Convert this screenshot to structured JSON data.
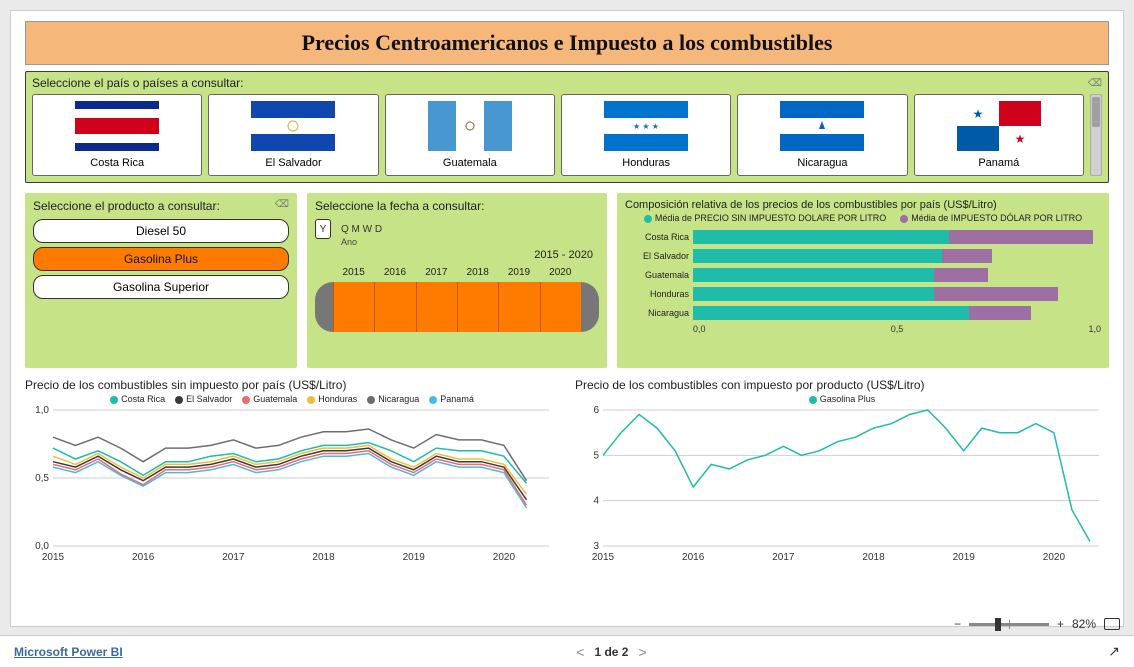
{
  "header": {
    "title": "Precios Centroamericanos e Impuesto a los combustibles"
  },
  "country_slicer": {
    "label": "Seleccione el país o países a consultar:",
    "items": [
      {
        "name": "Costa Rica",
        "flag": "cr"
      },
      {
        "name": "El Salvador",
        "flag": "sv"
      },
      {
        "name": "Guatemala",
        "flag": "gt"
      },
      {
        "name": "Honduras",
        "flag": "hn"
      },
      {
        "name": "Nicaragua",
        "flag": "ni"
      },
      {
        "name": "Panamá",
        "flag": "pa"
      }
    ]
  },
  "product_slicer": {
    "label": "Seleccione el producto a consultar:",
    "items": [
      "Diesel 50",
      "Gasolina Plus",
      "Gasolina Superior"
    ],
    "selected_index": 1,
    "selected_bg": "#ff7b00"
  },
  "date_slicer": {
    "label": "Seleccione la fecha a consultar:",
    "granularity": [
      "Y",
      "Q",
      "M",
      "W",
      "D"
    ],
    "granularity_sub": "Ano",
    "range_text": "2015 - 2020",
    "years": [
      "2015",
      "2016",
      "2017",
      "2018",
      "2019",
      "2020"
    ],
    "fill_color": "#ff7b00",
    "cap_color": "#777777"
  },
  "comp_chart": {
    "title": "Composición relativa de los precios de los combustibles por país (US$/Litro)",
    "legend": [
      {
        "label": "Média de PRECIO SIN IMPUESTO DOLARE POR LITRO",
        "color": "#1fbca9"
      },
      {
        "label": "Média de IMPUESTO DÓLAR POR LITRO",
        "color": "#9d6fa3"
      }
    ],
    "xmax": 1.05,
    "xticks": [
      "0,0",
      "0,5",
      "1,0"
    ],
    "bars": [
      {
        "label": "Costa Rica",
        "a": 0.66,
        "b": 0.37
      },
      {
        "label": "El Salvador",
        "a": 0.64,
        "b": 0.13
      },
      {
        "label": "Guatemala",
        "a": 0.62,
        "b": 0.14
      },
      {
        "label": "Honduras",
        "a": 0.62,
        "b": 0.32
      },
      {
        "label": "Nicaragua",
        "a": 0.71,
        "b": 0.16
      }
    ]
  },
  "left_chart": {
    "title": "Precio de los combustibles sin impuesto por país (US$/Litro)",
    "ylim": [
      0.0,
      1.0
    ],
    "yticks": [
      "0,0",
      "0,5",
      "1,0"
    ],
    "xlim": [
      2015,
      2020.5
    ],
    "xticks": [
      "2015",
      "2016",
      "2017",
      "2018",
      "2019",
      "2020"
    ],
    "background": "#ffffff",
    "series": [
      {
        "name": "Costa Rica",
        "color": "#1fbca9"
      },
      {
        "name": "El Salvador",
        "color": "#3a3a3a"
      },
      {
        "name": "Guatemala",
        "color": "#f06a6a"
      },
      {
        "name": "Honduras",
        "color": "#e8c13a"
      },
      {
        "name": "Nicaragua",
        "color": "#6e6e6e"
      },
      {
        "name": "Panamá",
        "color": "#4fb6e8"
      }
    ],
    "points_x": [
      2015,
      2015.25,
      2015.5,
      2015.75,
      2016,
      2016.25,
      2016.5,
      2016.75,
      2017,
      2017.25,
      2017.5,
      2017.75,
      2018,
      2018.25,
      2018.5,
      2018.75,
      2019,
      2019.25,
      2019.5,
      2019.75,
      2020,
      2020.25
    ],
    "values": {
      "Costa Rica": [
        0.72,
        0.64,
        0.7,
        0.62,
        0.52,
        0.62,
        0.62,
        0.66,
        0.68,
        0.62,
        0.64,
        0.7,
        0.74,
        0.74,
        0.76,
        0.7,
        0.62,
        0.72,
        0.7,
        0.7,
        0.66,
        0.46
      ],
      "El Salvador": [
        0.62,
        0.58,
        0.66,
        0.56,
        0.48,
        0.58,
        0.58,
        0.6,
        0.64,
        0.58,
        0.6,
        0.66,
        0.7,
        0.7,
        0.72,
        0.62,
        0.56,
        0.66,
        0.62,
        0.62,
        0.58,
        0.34
      ],
      "Guatemala": [
        0.6,
        0.56,
        0.64,
        0.53,
        0.45,
        0.56,
        0.56,
        0.58,
        0.62,
        0.56,
        0.58,
        0.64,
        0.68,
        0.68,
        0.7,
        0.6,
        0.54,
        0.64,
        0.6,
        0.6,
        0.56,
        0.3
      ],
      "Honduras": [
        0.66,
        0.6,
        0.68,
        0.58,
        0.5,
        0.6,
        0.6,
        0.62,
        0.66,
        0.6,
        0.62,
        0.68,
        0.72,
        0.72,
        0.74,
        0.64,
        0.58,
        0.68,
        0.64,
        0.64,
        0.6,
        0.38
      ],
      "Nicaragua": [
        0.8,
        0.74,
        0.8,
        0.72,
        0.62,
        0.72,
        0.72,
        0.74,
        0.78,
        0.72,
        0.74,
        0.8,
        0.84,
        0.84,
        0.86,
        0.78,
        0.72,
        0.82,
        0.78,
        0.78,
        0.74,
        0.48
      ],
      "Panamá": [
        0.58,
        0.54,
        0.62,
        0.52,
        0.44,
        0.54,
        0.54,
        0.56,
        0.6,
        0.54,
        0.56,
        0.62,
        0.66,
        0.66,
        0.68,
        0.58,
        0.52,
        0.62,
        0.58,
        0.58,
        0.54,
        0.28
      ]
    }
  },
  "right_chart": {
    "title": "Precio de los combustibles con impuesto por producto (US$/Litro)",
    "ylim": [
      3,
      6
    ],
    "yticks": [
      "3",
      "4",
      "5",
      "6"
    ],
    "xlim": [
      2015,
      2020.5
    ],
    "xticks": [
      "2015",
      "2016",
      "2017",
      "2018",
      "2019",
      "2020"
    ],
    "series": [
      {
        "name": "Gasolina Plus",
        "color": "#1fbca9"
      }
    ],
    "points_x": [
      2015,
      2015.2,
      2015.4,
      2015.6,
      2015.8,
      2016,
      2016.2,
      2016.4,
      2016.6,
      2016.8,
      2017,
      2017.2,
      2017.4,
      2017.6,
      2017.8,
      2018,
      2018.2,
      2018.4,
      2018.6,
      2018.8,
      2019,
      2019.2,
      2019.4,
      2019.6,
      2019.8,
      2020,
      2020.2,
      2020.4
    ],
    "values": {
      "Gasolina Plus": [
        5.0,
        5.5,
        5.9,
        5.6,
        5.1,
        4.3,
        4.8,
        4.7,
        4.9,
        5.0,
        5.2,
        5.0,
        5.1,
        5.3,
        5.4,
        5.6,
        5.7,
        5.9,
        6.0,
        5.6,
        5.1,
        5.6,
        5.5,
        5.5,
        5.7,
        5.5,
        3.8,
        3.1
      ]
    }
  },
  "zoom": {
    "percent": "82%"
  },
  "footer": {
    "brand": "Microsoft Power BI",
    "page_text": "1 de 2"
  }
}
